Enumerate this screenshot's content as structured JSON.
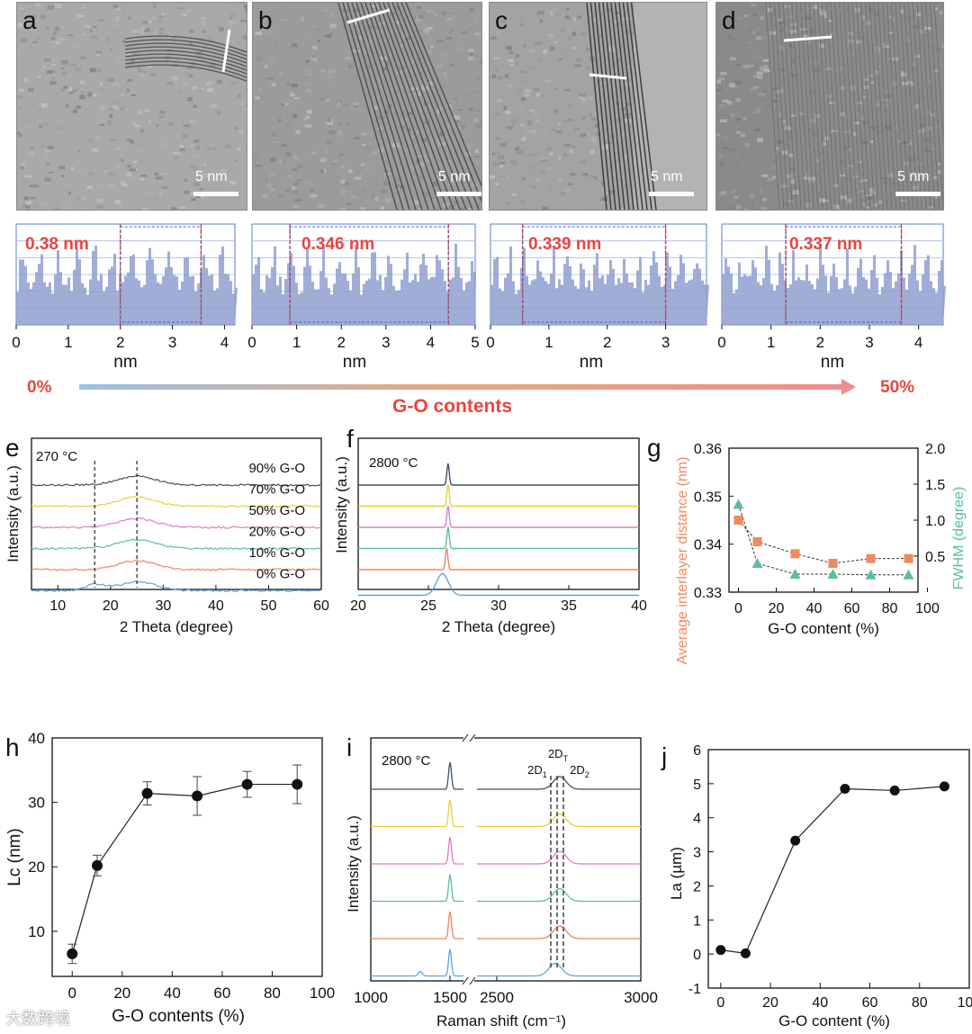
{
  "tem_panels": [
    {
      "letter": "a",
      "scale": "5 nm"
    },
    {
      "letter": "b",
      "scale": "5 nm"
    },
    {
      "letter": "c",
      "scale": "5 nm"
    },
    {
      "letter": "d",
      "scale": "5 nm"
    }
  ],
  "profiles": [
    {
      "label": "0.38 nm",
      "ticks": [
        "0",
        "1",
        "2",
        "3",
        "4"
      ],
      "xlabel": "nm"
    },
    {
      "label": "0.346 nm",
      "ticks": [
        "0",
        "1",
        "2",
        "3",
        "4",
        "5"
      ],
      "xlabel": "nm"
    },
    {
      "label": "0.339 nm",
      "ticks": [
        "0",
        "1",
        "2",
        "3"
      ],
      "xlabel": "nm"
    },
    {
      "label": "0.337 nm",
      "ticks": [
        "0",
        "1",
        "2",
        "3",
        "4"
      ],
      "xlabel": "nm"
    }
  ],
  "gradient": {
    "left": "0%",
    "right": "50%",
    "title": "G-O contents"
  },
  "colors": {
    "red": "#e8463c",
    "orange": "#f08a5d",
    "teal": "#5bbf9a",
    "profile_fill": "#8f9fcf",
    "profile_frame": "#5a7fd0"
  },
  "chart_data": [
    {
      "panel": "e",
      "type": "line",
      "title": "270 °C",
      "xlabel": "2 Theta (degree)",
      "ylabel": "Intensity (a.u.)",
      "xlim": [
        5,
        60
      ],
      "xticks": [
        "10",
        "20",
        "30",
        "40",
        "50",
        "60"
      ],
      "series": [
        {
          "name": "90% G-O",
          "color": "#3d5265"
        },
        {
          "name": "70% G-O",
          "color": "#e6cf3c"
        },
        {
          "name": "50% G-O",
          "color": "#e17bc4"
        },
        {
          "name": "20% G-O",
          "color": "#5bbf9a"
        },
        {
          "name": "10% G-O",
          "color": "#ee8559"
        },
        {
          "name": "0% G-O",
          "color": "#5ea6d6"
        }
      ],
      "reference_lines": [
        17,
        25
      ]
    },
    {
      "panel": "f",
      "type": "line",
      "title": "2800 °C",
      "xlabel": "2 Theta (degree)",
      "ylabel": "Intensity (a.u.)",
      "xlim": [
        20,
        40
      ],
      "xticks": [
        "20",
        "25",
        "30",
        "35",
        "40"
      ],
      "peak_positions": [
        26.4,
        26.4,
        26.4,
        26.4,
        26.3,
        26.0
      ]
    },
    {
      "panel": "g",
      "type": "scatter",
      "xlabel": "G-O content (%)",
      "ylabel_left": "Average interlayer distance (nm)",
      "ylabel_right": "FWHM (degree)",
      "xlim": [
        -5,
        95
      ],
      "xticks": [
        "0",
        "20",
        "40",
        "60",
        "80",
        "100"
      ],
      "ylim_left": [
        0.33,
        0.36
      ],
      "yticks_left": [
        "0.33",
        "0.34",
        "0.35",
        "0.36"
      ],
      "ylim_right": [
        0,
        2.0
      ],
      "yticks_right": [
        "0.5",
        "1.0",
        "1.5",
        "2.0"
      ],
      "series": [
        {
          "name": "Average interlayer distance",
          "x": [
            0,
            10,
            30,
            50,
            70,
            90
          ],
          "values": [
            0.345,
            0.3405,
            0.338,
            0.336,
            0.337,
            0.337
          ]
        },
        {
          "name": "FWHM",
          "x": [
            0,
            10,
            30,
            50,
            70,
            90
          ],
          "values": [
            1.22,
            0.4,
            0.25,
            0.25,
            0.24,
            0.24
          ]
        }
      ]
    },
    {
      "panel": "h",
      "type": "line",
      "xlabel": "G-O contents (%)",
      "ylabel": "Lc (nm)",
      "xlim": [
        -8,
        100
      ],
      "xticks": [
        "0",
        "20",
        "40",
        "60",
        "80",
        "100"
      ],
      "ylim": [
        3,
        40
      ],
      "yticks": [
        "10",
        "20",
        "30",
        "40"
      ],
      "x": [
        0,
        10,
        30,
        50,
        70,
        90
      ],
      "values": [
        6.5,
        20.2,
        31.4,
        31.0,
        32.8,
        32.8
      ],
      "errors": [
        1.5,
        1.6,
        1.8,
        3.0,
        2.0,
        3.0
      ]
    },
    {
      "panel": "i",
      "type": "line",
      "title": "2800 °C",
      "xlabel": "Raman shift (cm⁻¹)",
      "ylabel": "Intensity (a.u.)",
      "xticks": [
        "1000",
        "1500",
        "2500",
        "3000"
      ],
      "annotations": [
        "2D1",
        "2DT",
        "2D2"
      ]
    },
    {
      "panel": "j",
      "type": "line",
      "xlabel": "G-O content (%)",
      "ylabel": "La (µm)",
      "xlim": [
        -5,
        100
      ],
      "xticks": [
        "0",
        "20",
        "40",
        "60",
        "80",
        "100"
      ],
      "ylim": [
        -1,
        6
      ],
      "yticks": [
        "-1",
        "0",
        "1",
        "2",
        "3",
        "4",
        "5",
        "6"
      ],
      "x": [
        0,
        10,
        30,
        50,
        70,
        90
      ],
      "values": [
        0.12,
        0.02,
        3.33,
        4.85,
        4.8,
        4.92
      ]
    }
  ],
  "labels": {
    "e": "e",
    "f": "f",
    "g": "g",
    "h": "h",
    "i": "i",
    "j": "j"
  },
  "watermark": "大数跨境"
}
